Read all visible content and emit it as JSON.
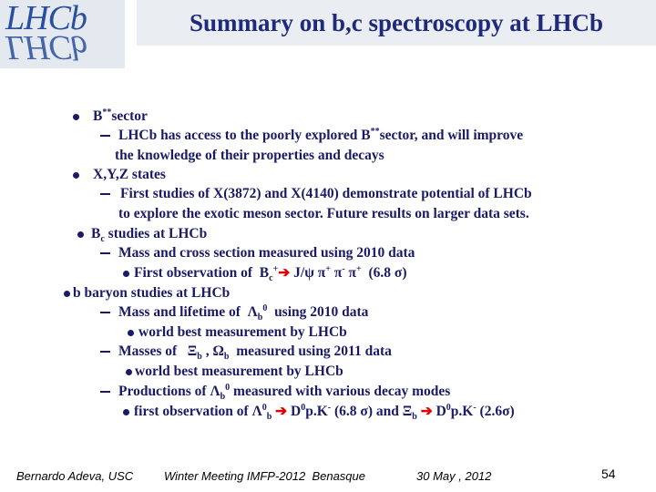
{
  "header": {
    "logo": "LHCb",
    "title": "Summary on b,c spectroscopy at LHCb"
  },
  "body": {
    "lines": [
      {
        "parts": [
          {
            "text": "B"
          },
          {
            "text": "**",
            "script": "sup"
          },
          {
            "text": "sector"
          }
        ]
      },
      {
        "parts": [
          {
            "text": "LHCb has access to the poorly explored B"
          },
          {
            "text": "**",
            "script": "sup"
          },
          {
            "text": "sector, and will improve"
          }
        ]
      },
      {
        "parts": [
          {
            "text": "the knowledge of their properties and decays"
          }
        ]
      },
      {
        "parts": [
          {
            "text": "X,Y,Z states"
          }
        ]
      },
      {
        "parts": [
          {
            "text": "First studies of X(3872) and X(4140) demonstrate potential of LHCb"
          }
        ]
      },
      {
        "parts": [
          {
            "text": "to explore the exotic meson sector. Future results on larger data sets."
          }
        ]
      },
      {
        "parts": [
          {
            "text": "B"
          },
          {
            "text": "c",
            "script": "sub"
          },
          {
            "text": " studies at LHCb"
          }
        ]
      },
      {
        "parts": [
          {
            "text": "Mass and cross section measured using 2010 data"
          }
        ]
      },
      {
        "parts": [
          {
            "text": "First observation of  B"
          },
          {
            "text": "c",
            "script": "sub"
          },
          {
            "text": "+",
            "script": "sup"
          },
          {
            "text": "➔",
            "color": "#e00000"
          },
          {
            "text": " J/ψ π"
          },
          {
            "text": "+",
            "script": "sup"
          },
          {
            "text": " π"
          },
          {
            "text": "-",
            "script": "sup"
          },
          {
            "text": " π"
          },
          {
            "text": "+",
            "script": "sup"
          },
          {
            "text": "  (6.8 σ)"
          }
        ]
      },
      {
        "parts": [
          {
            "text": "b baryon studies at LHCb"
          }
        ]
      },
      {
        "parts": [
          {
            "text": "Mass and lifetime of  Λ"
          },
          {
            "text": "b",
            "script": "sub"
          },
          {
            "text": "0",
            "script": "sup"
          },
          {
            "text": "  using 2010 data"
          }
        ]
      },
      {
        "parts": [
          {
            "text": "world best measurement by LHCb"
          }
        ]
      },
      {
        "parts": [
          {
            "text": "Masses of   Ξ"
          },
          {
            "text": "b",
            "script": "sub"
          },
          {
            "text": " , Ω"
          },
          {
            "text": "b",
            "script": "sub"
          },
          {
            "text": "  measured using 2011 data"
          }
        ]
      },
      {
        "parts": [
          {
            "text": "world best measurement by LHCb"
          }
        ]
      },
      {
        "parts": [
          {
            "text": "Productions of Λ"
          },
          {
            "text": "b",
            "script": "sub"
          },
          {
            "text": "0",
            "script": "sup"
          },
          {
            "text": " measured with various decay modes"
          }
        ]
      },
      {
        "parts": [
          {
            "text": "first observation of Λ"
          },
          {
            "text": "0",
            "script": "sup"
          },
          {
            "text": "b",
            "script": "sub"
          },
          {
            "text": " "
          },
          {
            "text": "➔",
            "color": "#e00000"
          },
          {
            "text": " D"
          },
          {
            "text": "0",
            "script": "sup"
          },
          {
            "text": "p.K"
          },
          {
            "text": "-",
            "script": "sup"
          },
          {
            "text": " (6.8 σ) and Ξ"
          },
          {
            "text": "b",
            "script": "sub"
          },
          {
            "text": " "
          },
          {
            "text": "➔",
            "color": "#e00000"
          },
          {
            "text": " D"
          },
          {
            "text": "0",
            "script": "sup"
          },
          {
            "text": "p.K"
          },
          {
            "text": "-",
            "script": "sup"
          },
          {
            "text": " (2.6σ)"
          }
        ]
      }
    ]
  },
  "footer": {
    "author": "Bernardo Adeva, USC",
    "event": "Winter Meeting IMFP-2012  Benasque",
    "date": "30 May , 2012",
    "page": "54"
  }
}
